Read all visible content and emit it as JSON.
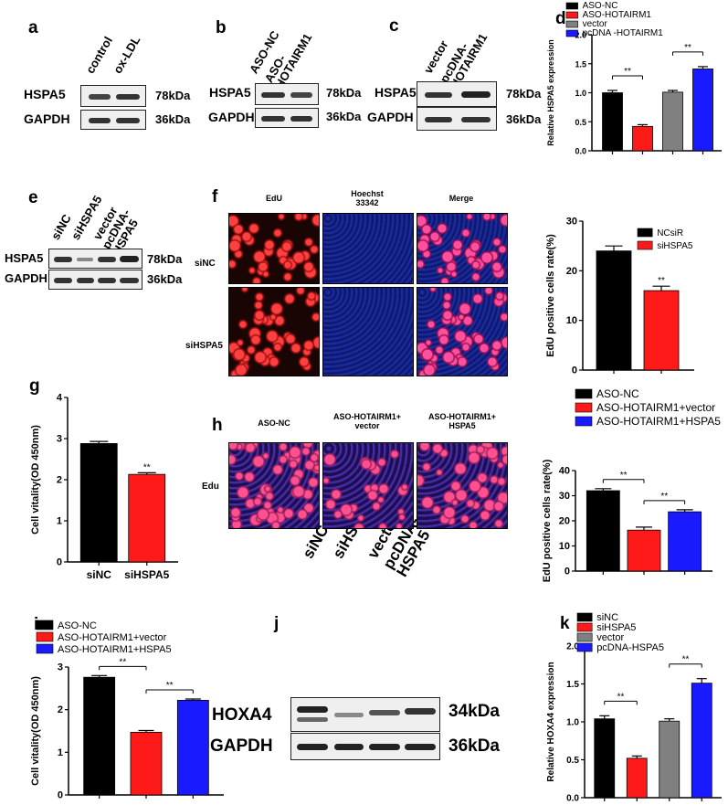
{
  "panel_labels": {
    "a": "a",
    "b": "b",
    "c": "c",
    "d": "d",
    "e": "e",
    "f": "f",
    "g": "g",
    "h": "h",
    "i": "i",
    "j": "j",
    "k": "k"
  },
  "common": {
    "hspa5": "HSPA5",
    "gapdh": "GAPDH",
    "kda78": "78kDa",
    "kda36": "36kDa",
    "kda34": "34kDa",
    "hoxa4": "HOXA4",
    "sig": "**"
  },
  "blot_a": {
    "lanes": [
      "control",
      "ox-LDL"
    ]
  },
  "blot_b": {
    "lanes": [
      "ASO-NC",
      "ASO-\nHOTAIRM1"
    ]
  },
  "blot_c": {
    "lanes": [
      "vector",
      "pcDNA-\nHOTAIRM1"
    ]
  },
  "blot_e": {
    "lanes": [
      "siNC",
      "siHSPA5",
      "vector",
      "pcDNA-\nHSPA5"
    ]
  },
  "blot_j": {
    "lanes": [
      "siNC",
      "siHSPA5",
      "vector",
      "pcDNA-\nHSPA5"
    ]
  },
  "panel_f": {
    "cols": [
      "EdU",
      "Hoechst\n33342",
      "Merge"
    ],
    "rows": [
      "siNC",
      "siHSPA5"
    ]
  },
  "panel_h": {
    "cols": [
      "ASO-NC",
      "ASO-HOTAIRM1+\nvector",
      "ASO-HOTAIRM1+\nHSPA5"
    ],
    "row": "Edu"
  },
  "colors": {
    "black": "#000000",
    "red": "#ff1a1a",
    "gray": "#808080",
    "blue": "#1a1aff"
  },
  "chart_data": [
    {
      "id": "d",
      "type": "bar",
      "ylabel": "Relative HSPA5 expression",
      "ylim": [
        0,
        2.0
      ],
      "yticks": [
        "0.0",
        "0.5",
        "1.0",
        "1.5",
        "2.0"
      ],
      "legend": [
        "ASO-NC",
        "ASO-HOTAIRM1",
        "vector",
        "pcDNA -HOTAIRM1"
      ],
      "values": [
        1.0,
        0.42,
        1.01,
        1.41
      ],
      "errors": [
        0.04,
        0.03,
        0.03,
        0.04
      ],
      "colors": [
        "#000000",
        "#ff1a1a",
        "#808080",
        "#1a1aff"
      ],
      "sig": [
        [
          0,
          1,
          "**"
        ],
        [
          2,
          3,
          "**"
        ]
      ]
    },
    {
      "id": "f",
      "type": "bar",
      "ylabel": "EdU positive cells rate(%)",
      "ylim": [
        0,
        30
      ],
      "yticks": [
        "0",
        "10",
        "20",
        "30"
      ],
      "legend": [
        "NCsiR",
        "siHSPA5"
      ],
      "values": [
        24.0,
        16.0
      ],
      "errors": [
        1.0,
        0.9
      ],
      "colors": [
        "#000000",
        "#ff1a1a"
      ],
      "sig_over": [
        [
          1,
          "**"
        ]
      ]
    },
    {
      "id": "g",
      "type": "bar",
      "ylabel": "Cell vitality(OD 450nm)",
      "ylim": [
        0,
        4
      ],
      "yticks": [
        "0",
        "1",
        "2",
        "3",
        "4"
      ],
      "categories": [
        "siNC",
        "siHSPA5"
      ],
      "values": [
        2.88,
        2.13
      ],
      "errors": [
        0.05,
        0.04
      ],
      "colors": [
        "#000000",
        "#ff1a1a"
      ],
      "sig_over": [
        [
          1,
          "**"
        ]
      ]
    },
    {
      "id": "h",
      "type": "bar",
      "ylabel": "EdU positive cells rate(%)",
      "ylim": [
        0,
        40
      ],
      "yticks": [
        "0",
        "10",
        "20",
        "30",
        "40"
      ],
      "legend": [
        "ASO-NC",
        "ASO-HOTAIRM1+vector",
        "ASO-HOTAIRM1+HSPA5"
      ],
      "values": [
        32.0,
        16.3,
        23.6
      ],
      "errors": [
        0.8,
        1.2,
        0.8
      ],
      "colors": [
        "#000000",
        "#ff1a1a",
        "#1a1aff"
      ],
      "sig": [
        [
          0,
          1,
          "**"
        ],
        [
          1,
          2,
          "**"
        ]
      ]
    },
    {
      "id": "i",
      "type": "bar",
      "ylabel": "Cell vitality(OD 450nm)",
      "ylim": [
        0,
        3
      ],
      "yticks": [
        "0",
        "1",
        "2",
        "3"
      ],
      "legend": [
        "ASO-NC",
        "ASO-HOTAIRM1+vector",
        "ASO-HOTAIRM1+HSPA5"
      ],
      "values": [
        2.76,
        1.47,
        2.22
      ],
      "errors": [
        0.04,
        0.04,
        0.03
      ],
      "colors": [
        "#000000",
        "#ff1a1a",
        "#1a1aff"
      ],
      "sig": [
        [
          0,
          1,
          "**"
        ],
        [
          1,
          2,
          "**"
        ]
      ]
    },
    {
      "id": "k",
      "type": "bar",
      "ylabel": "Relative HOXA4 expression",
      "ylim": [
        0,
        2.0
      ],
      "yticks": [
        "0.0",
        "0.5",
        "1.0",
        "1.5",
        "2.0"
      ],
      "legend": [
        "siNC",
        "siHSPA5",
        "vector",
        "pcDNA-HSPA5"
      ],
      "values": [
        1.04,
        0.52,
        1.01,
        1.51
      ],
      "errors": [
        0.04,
        0.03,
        0.03,
        0.06
      ],
      "colors": [
        "#000000",
        "#ff1a1a",
        "#808080",
        "#1a1aff"
      ],
      "sig": [
        [
          0,
          1,
          "**"
        ],
        [
          2,
          3,
          "**"
        ]
      ]
    }
  ]
}
